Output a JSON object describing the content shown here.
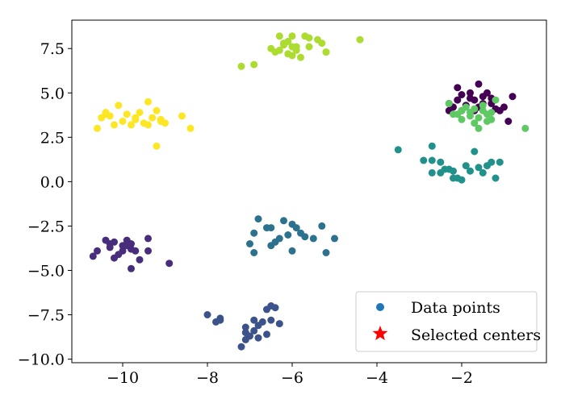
{
  "chart_data": {
    "type": "scatter",
    "xlim": [
      -11.2,
      0.0
    ],
    "ylim": [
      -10.2,
      9.1
    ],
    "x_ticks": [
      -10,
      -8,
      -6,
      -4,
      -2
    ],
    "x_tick_labels": [
      "−10",
      "−8",
      "−6",
      "−4",
      "−2"
    ],
    "y_ticks": [
      -10.0,
      -7.5,
      -5.0,
      -2.5,
      0.0,
      2.5,
      5.0,
      7.5
    ],
    "y_tick_labels": [
      "−10.0",
      "−7.5",
      "−5.0",
      "−2.5",
      "0.0",
      "2.5",
      "5.0",
      "7.5"
    ],
    "grid": false,
    "legend": {
      "position": "lower-right",
      "entries": [
        {
          "label": "Data points",
          "marker": "circle",
          "color": "#1f77b4"
        },
        {
          "label": "Selected centers",
          "marker": "star",
          "color": "#ff0000"
        }
      ]
    },
    "clusters": [
      {
        "color": "#440154",
        "points": [
          [
            -1.6,
            5.5
          ],
          [
            -1.9,
            4.3
          ],
          [
            -2.1,
            5.3
          ],
          [
            -2.3,
            4.4
          ],
          [
            -2.0,
            4.9
          ],
          [
            -1.8,
            4.7
          ],
          [
            -1.5,
            4.4
          ],
          [
            -1.3,
            4.7
          ],
          [
            -1.2,
            4.1
          ],
          [
            -1.0,
            4.2
          ],
          [
            -0.8,
            4.8
          ],
          [
            -1.4,
            5.0
          ],
          [
            -1.7,
            4.0
          ],
          [
            -2.1,
            4.6
          ],
          [
            -2.3,
            4.0
          ],
          [
            -1.6,
            4.2
          ],
          [
            -1.1,
            4.0
          ],
          [
            -0.9,
            3.4
          ],
          [
            -2.0,
            4.0
          ],
          [
            -1.8,
            5.0
          ],
          [
            -1.5,
            4.8
          ],
          [
            -2.2,
            4.2
          ],
          [
            -1.7,
            4.6
          ],
          [
            -1.3,
            4.4
          ]
        ]
      },
      {
        "color": "#472d7b",
        "points": [
          [
            -10.7,
            -4.2
          ],
          [
            -10.6,
            -3.9
          ],
          [
            -10.4,
            -3.3
          ],
          [
            -10.3,
            -3.7
          ],
          [
            -10.2,
            -3.4
          ],
          [
            -10.1,
            -4.1
          ],
          [
            -10.0,
            -3.6
          ],
          [
            -9.9,
            -3.3
          ],
          [
            -9.8,
            -3.8
          ],
          [
            -9.7,
            -3.9
          ],
          [
            -9.6,
            -4.4
          ],
          [
            -9.4,
            -3.2
          ],
          [
            -9.4,
            -3.9
          ],
          [
            -8.9,
            -4.6
          ],
          [
            -9.8,
            -4.9
          ],
          [
            -10.2,
            -4.3
          ],
          [
            -10.0,
            -3.9
          ],
          [
            -9.9,
            -3.6
          ],
          [
            -9.8,
            -3.5
          ],
          [
            -10.3,
            -3.5
          ]
        ]
      },
      {
        "color": "#3b528b",
        "points": [
          [
            -8.0,
            -7.5
          ],
          [
            -7.8,
            -7.9
          ],
          [
            -7.7,
            -7.8
          ],
          [
            -7.7,
            -7.7
          ],
          [
            -7.2,
            -9.3
          ],
          [
            -7.1,
            -8.2
          ],
          [
            -7.1,
            -8.5
          ],
          [
            -7.0,
            -8.7
          ],
          [
            -6.9,
            -7.8
          ],
          [
            -6.9,
            -8.4
          ],
          [
            -6.8,
            -8.1
          ],
          [
            -6.7,
            -7.9
          ],
          [
            -6.6,
            -8.6
          ],
          [
            -6.5,
            -7.0
          ],
          [
            -6.5,
            -7.8
          ],
          [
            -6.4,
            -7.1
          ],
          [
            -6.3,
            -8.0
          ],
          [
            -6.6,
            -7.2
          ],
          [
            -7.1,
            -8.9
          ],
          [
            -6.8,
            -8.8
          ]
        ]
      },
      {
        "color": "#2c728e",
        "points": [
          [
            -7.0,
            -3.5
          ],
          [
            -6.9,
            -2.9
          ],
          [
            -6.8,
            -2.1
          ],
          [
            -6.6,
            -2.6
          ],
          [
            -6.5,
            -3.6
          ],
          [
            -6.4,
            -3.4
          ],
          [
            -6.3,
            -3.2
          ],
          [
            -6.2,
            -2.2
          ],
          [
            -6.1,
            -3.0
          ],
          [
            -6.0,
            -3.9
          ],
          [
            -5.9,
            -2.6
          ],
          [
            -5.8,
            -2.9
          ],
          [
            -5.7,
            -3.1
          ],
          [
            -5.5,
            -3.2
          ],
          [
            -5.3,
            -2.5
          ],
          [
            -5.2,
            -4.0
          ],
          [
            -5.0,
            -3.2
          ],
          [
            -6.9,
            -4.0
          ],
          [
            -6.5,
            -2.6
          ],
          [
            -6.0,
            -2.4
          ]
        ]
      },
      {
        "color": "#21918c",
        "points": [
          [
            -3.5,
            1.8
          ],
          [
            -2.9,
            1.2
          ],
          [
            -2.7,
            1.2
          ],
          [
            -2.7,
            2.0
          ],
          [
            -2.7,
            0.5
          ],
          [
            -2.5,
            1.1
          ],
          [
            -2.4,
            0.7
          ],
          [
            -2.3,
            0.7
          ],
          [
            -2.2,
            0.6
          ],
          [
            -2.2,
            0.2
          ],
          [
            -2.1,
            0.2
          ],
          [
            -2.0,
            0.1
          ],
          [
            -1.9,
            0.9
          ],
          [
            -1.8,
            0.6
          ],
          [
            -1.7,
            1.7
          ],
          [
            -1.5,
            0.5
          ],
          [
            -1.4,
            0.9
          ],
          [
            -1.3,
            1.1
          ],
          [
            -1.2,
            0.2
          ],
          [
            -1.1,
            1.1
          ],
          [
            -2.5,
            0.5
          ],
          [
            -1.6,
            0.8
          ]
        ]
      },
      {
        "color": "#5ec962",
        "points": [
          [
            -2.3,
            4.4
          ],
          [
            -2.2,
            3.8
          ],
          [
            -2.0,
            3.5
          ],
          [
            -1.9,
            4.2
          ],
          [
            -1.8,
            3.7
          ],
          [
            -1.7,
            4.1
          ],
          [
            -1.6,
            3.6
          ],
          [
            -1.5,
            4.0
          ],
          [
            -1.4,
            3.4
          ],
          [
            -1.3,
            3.5
          ],
          [
            -1.2,
            4.6
          ],
          [
            -1.6,
            3.0
          ],
          [
            -0.5,
            3.0
          ],
          [
            -1.5,
            4.3
          ],
          [
            -1.8,
            3.9
          ],
          [
            -2.1,
            3.8
          ],
          [
            -1.4,
            3.8
          ],
          [
            -1.7,
            3.3
          ],
          [
            -1.3,
            3.9
          ],
          [
            -2.0,
            4.0
          ]
        ]
      },
      {
        "color": "#addc30",
        "points": [
          [
            -7.2,
            6.5
          ],
          [
            -6.9,
            6.6
          ],
          [
            -6.5,
            7.5
          ],
          [
            -6.4,
            7.3
          ],
          [
            -6.3,
            8.2
          ],
          [
            -6.2,
            7.8
          ],
          [
            -6.1,
            7.2
          ],
          [
            -6.0,
            7.6
          ],
          [
            -5.9,
            7.4
          ],
          [
            -5.8,
            7.0
          ],
          [
            -5.7,
            8.2
          ],
          [
            -5.6,
            7.6
          ],
          [
            -5.4,
            8.0
          ],
          [
            -5.3,
            7.8
          ],
          [
            -5.2,
            7.3
          ],
          [
            -4.4,
            8.0
          ],
          [
            -6.0,
            8.2
          ],
          [
            -6.1,
            7.9
          ],
          [
            -5.9,
            7.6
          ],
          [
            -6.2,
            7.7
          ],
          [
            -5.6,
            8.1
          ],
          [
            -5.2,
            7.3
          ],
          [
            -6.3,
            7.4
          ],
          [
            -6.0,
            7.1
          ]
        ]
      },
      {
        "color": "#fde725",
        "points": [
          [
            -10.6,
            3.0
          ],
          [
            -10.5,
            3.6
          ],
          [
            -10.4,
            3.9
          ],
          [
            -10.3,
            3.7
          ],
          [
            -10.2,
            3.2
          ],
          [
            -10.1,
            4.3
          ],
          [
            -10.0,
            3.4
          ],
          [
            -9.9,
            3.8
          ],
          [
            -9.8,
            3.2
          ],
          [
            -9.7,
            3.5
          ],
          [
            -9.6,
            3.9
          ],
          [
            -9.5,
            3.3
          ],
          [
            -9.4,
            4.5
          ],
          [
            -9.3,
            3.6
          ],
          [
            -9.2,
            4.0
          ],
          [
            -9.1,
            3.5
          ],
          [
            -9.0,
            3.3
          ],
          [
            -8.6,
            3.7
          ],
          [
            -8.4,
            3.0
          ],
          [
            -9.2,
            2.0
          ],
          [
            -10.4,
            3.8
          ],
          [
            -9.7,
            3.6
          ],
          [
            -9.4,
            3.2
          ],
          [
            -9.1,
            3.4
          ]
        ]
      }
    ]
  }
}
